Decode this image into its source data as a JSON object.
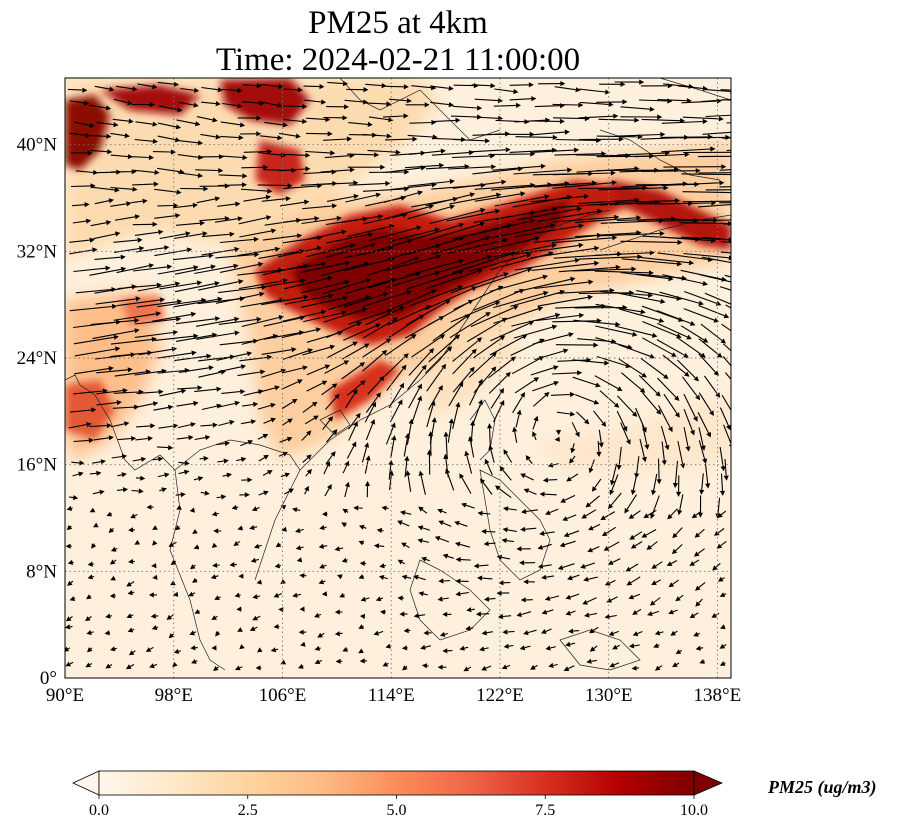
{
  "title": {
    "line1": "PM25 at 4km",
    "line2": "Time: 2024-02-21 11:00:00"
  },
  "map": {
    "lon_range": [
      90,
      139
    ],
    "lat_range": [
      0,
      45
    ],
    "lon_ticks": [
      {
        "value": 90,
        "label": "90°E"
      },
      {
        "value": 98,
        "label": "98°E"
      },
      {
        "value": 106,
        "label": "106°E"
      },
      {
        "value": 114,
        "label": "114°E"
      },
      {
        "value": 122,
        "label": "122°E"
      },
      {
        "value": 130,
        "label": "130°E"
      },
      {
        "value": 138,
        "label": "138°E"
      }
    ],
    "lat_ticks": [
      {
        "value": 0,
        "label": "0°"
      },
      {
        "value": 8,
        "label": "8°N"
      },
      {
        "value": 16,
        "label": "16°N"
      },
      {
        "value": 24,
        "label": "24°N"
      },
      {
        "value": 32,
        "label": "32°N"
      },
      {
        "value": 40,
        "label": "40°N"
      }
    ],
    "gridlines": "dotted",
    "field_colormap": "OrRd",
    "vectors": "wind"
  },
  "colorbar": {
    "label": "PM25 (ug/m$^3$)",
    "label_display": "PM25 (ug/m3)",
    "min": 0.0,
    "max": 10.0,
    "extend": "both",
    "ticks": [
      "0.0",
      "2.5",
      "5.0",
      "7.5",
      "10.0"
    ],
    "colors": [
      "#fff7ec",
      "#fee8c8",
      "#fdd49e",
      "#fdbb84",
      "#fc8d59",
      "#ef6548",
      "#d7301f",
      "#b30000",
      "#7f0000"
    ]
  }
}
